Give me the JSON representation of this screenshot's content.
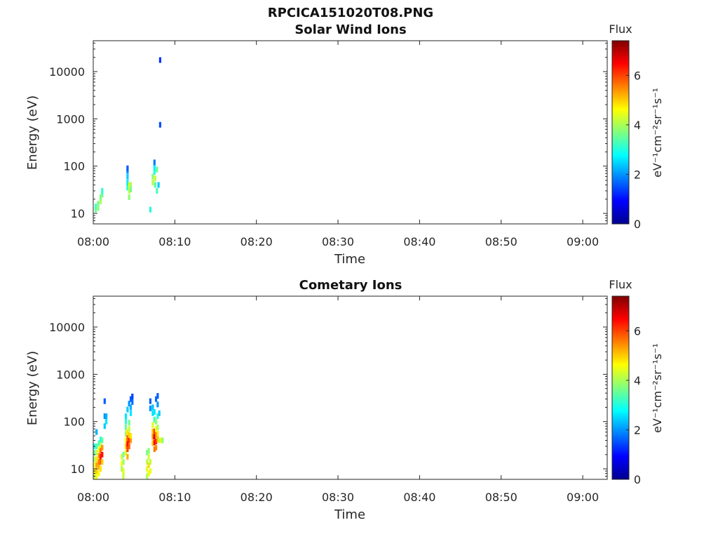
{
  "figure_title": "RPCICA151020T08.PNG",
  "chart_data": [
    {
      "type": "heatmap",
      "title": "Solar Wind Ions",
      "xlabel": "Time",
      "ylabel": "Energy (eV)",
      "y_scale": "log",
      "xlim": [
        "08:00",
        "09:03"
      ],
      "ylim": [
        6,
        45000
      ],
      "x_ticks": [
        "08:00",
        "08:10",
        "08:20",
        "08:30",
        "08:40",
        "08:50",
        "09:00"
      ],
      "y_ticks": [
        "10",
        "100",
        "1000",
        "10000"
      ],
      "colorbar": {
        "label": "Flux",
        "unit": "eV⁻¹cm⁻²sr⁻¹s⁻¹",
        "range": [
          0,
          7.4
        ],
        "ticks": [
          "0",
          "2",
          "4",
          "6"
        ],
        "colormap": "jet"
      },
      "cells": [
        [
          0.3,
          12,
          3.5
        ],
        [
          0.3,
          14,
          3.3
        ],
        [
          0.6,
          13,
          3.8
        ],
        [
          0.6,
          16,
          3.6
        ],
        [
          0.9,
          18,
          4.0
        ],
        [
          0.9,
          22,
          3.7
        ],
        [
          1.1,
          25,
          3.5
        ],
        [
          1.1,
          30,
          3.1
        ],
        [
          4.2,
          35,
          3.0
        ],
        [
          4.2,
          45,
          2.6
        ],
        [
          4.2,
          60,
          2.4
        ],
        [
          4.2,
          80,
          1.9
        ],
        [
          4.2,
          90,
          1.6
        ],
        [
          4.4,
          22,
          3.8
        ],
        [
          4.4,
          30,
          4.2
        ],
        [
          4.4,
          40,
          4.4
        ],
        [
          4.6,
          40,
          4.0
        ],
        [
          4.6,
          32,
          3.6
        ],
        [
          7.0,
          12,
          3.0
        ],
        [
          7.3,
          45,
          4.1
        ],
        [
          7.3,
          60,
          3.8
        ],
        [
          7.5,
          75,
          3.0
        ],
        [
          7.5,
          95,
          2.7
        ],
        [
          7.5,
          120,
          1.8
        ],
        [
          7.6,
          55,
          4.2
        ],
        [
          7.6,
          40,
          3.4
        ],
        [
          7.8,
          30,
          3.3
        ],
        [
          7.8,
          85,
          3.5
        ],
        [
          8.0,
          40,
          2.4
        ],
        [
          8.2,
          750,
          1.5
        ],
        [
          8.2,
          17500,
          1.3
        ]
      ]
    },
    {
      "type": "heatmap",
      "title": "Cometary Ions",
      "xlabel": "Time",
      "ylabel": "Energy (eV)",
      "y_scale": "log",
      "xlim": [
        "08:00",
        "09:03"
      ],
      "ylim": [
        6,
        45000
      ],
      "x_ticks": [
        "08:00",
        "08:10",
        "08:20",
        "08:30",
        "08:40",
        "08:50",
        "09:00"
      ],
      "y_ticks": [
        "10",
        "100",
        "1000",
        "10000"
      ],
      "colorbar": {
        "label": "Flux",
        "unit": "eV⁻¹cm⁻²sr⁻¹s⁻¹",
        "range": [
          0,
          7.4
        ],
        "ticks": [
          "0",
          "2",
          "4",
          "6"
        ],
        "colormap": "jet"
      },
      "cells": [
        [
          0.1,
          7,
          4.3
        ],
        [
          0.1,
          9,
          4.8
        ],
        [
          0.1,
          12,
          4.5
        ],
        [
          0.1,
          16,
          4.0
        ],
        [
          0.1,
          22,
          3.4
        ],
        [
          0.1,
          30,
          2.8
        ],
        [
          0.4,
          7,
          4.5
        ],
        [
          0.4,
          9,
          5.0
        ],
        [
          0.4,
          12,
          5.3
        ],
        [
          0.4,
          16,
          4.8
        ],
        [
          0.4,
          22,
          4.2
        ],
        [
          0.4,
          30,
          3.3
        ],
        [
          0.4,
          60,
          2.2
        ],
        [
          0.7,
          8,
          4.6
        ],
        [
          0.7,
          11,
          5.2
        ],
        [
          0.7,
          14,
          5.6
        ],
        [
          0.7,
          19,
          5.4
        ],
        [
          0.7,
          26,
          4.6
        ],
        [
          0.7,
          35,
          3.2
        ],
        [
          0.9,
          10,
          4.8
        ],
        [
          0.9,
          14,
          5.8
        ],
        [
          0.9,
          18,
          6.3
        ],
        [
          0.9,
          24,
          5.7
        ],
        [
          0.9,
          32,
          4.2
        ],
        [
          0.9,
          42,
          3.0
        ],
        [
          1.1,
          14,
          5.0
        ],
        [
          1.1,
          20,
          6.4
        ],
        [
          1.1,
          28,
          5.4
        ],
        [
          1.1,
          40,
          3.5
        ],
        [
          1.4,
          80,
          2.4
        ],
        [
          1.4,
          130,
          2.0
        ],
        [
          1.6,
          100,
          2.6
        ],
        [
          1.6,
          130,
          2.2
        ],
        [
          1.4,
          270,
          1.6
        ],
        [
          3.5,
          10,
          4.0
        ],
        [
          3.5,
          13,
          4.6
        ],
        [
          3.5,
          18,
          4.3
        ],
        [
          3.7,
          7,
          4.2
        ],
        [
          3.7,
          9,
          4.4
        ],
        [
          3.7,
          14,
          3.9
        ],
        [
          3.7,
          20,
          3.6
        ],
        [
          4.0,
          22,
          4.4
        ],
        [
          4.0,
          30,
          5.0
        ],
        [
          4.0,
          40,
          4.6
        ],
        [
          4.0,
          55,
          4.0
        ],
        [
          4.0,
          75,
          3.6
        ],
        [
          4.0,
          100,
          3.1
        ],
        [
          4.0,
          130,
          2.6
        ],
        [
          4.2,
          18,
          5.2
        ],
        [
          4.2,
          26,
          6.0
        ],
        [
          4.2,
          34,
          6.5
        ],
        [
          4.2,
          45,
          5.8
        ],
        [
          4.2,
          60,
          4.8
        ],
        [
          4.2,
          180,
          2.4
        ],
        [
          4.4,
          30,
          5.8
        ],
        [
          4.4,
          40,
          6.2
        ],
        [
          4.4,
          52,
          5.0
        ],
        [
          4.4,
          70,
          4.2
        ],
        [
          4.4,
          95,
          3.6
        ],
        [
          4.4,
          240,
          2.0
        ],
        [
          4.6,
          40,
          5.4
        ],
        [
          4.6,
          50,
          4.8
        ],
        [
          4.6,
          150,
          2.6
        ],
        [
          4.6,
          200,
          2.2
        ],
        [
          4.6,
          300,
          1.6
        ],
        [
          4.8,
          260,
          1.7
        ],
        [
          4.8,
          340,
          1.4
        ],
        [
          6.6,
          7,
          4.0
        ],
        [
          6.6,
          10,
          4.4
        ],
        [
          6.6,
          14,
          4.1
        ],
        [
          6.6,
          22,
          3.6
        ],
        [
          6.8,
          8,
          4.5
        ],
        [
          6.8,
          12,
          4.9
        ],
        [
          6.8,
          18,
          4.3
        ],
        [
          6.8,
          24,
          3.8
        ],
        [
          7.0,
          9,
          4.5
        ],
        [
          7.0,
          14,
          4.2
        ],
        [
          7.0,
          190,
          2.0
        ],
        [
          7.0,
          270,
          1.6
        ],
        [
          7.3,
          35,
          5.0
        ],
        [
          7.3,
          48,
          5.4
        ],
        [
          7.3,
          62,
          5.0
        ],
        [
          7.3,
          85,
          4.4
        ],
        [
          7.3,
          150,
          2.6
        ],
        [
          7.3,
          200,
          2.3
        ],
        [
          7.5,
          26,
          5.6
        ],
        [
          7.5,
          36,
          6.4
        ],
        [
          7.5,
          48,
          6.8
        ],
        [
          7.5,
          62,
          6.0
        ],
        [
          7.5,
          110,
          3.2
        ],
        [
          7.5,
          160,
          2.6
        ],
        [
          7.7,
          28,
          5.5
        ],
        [
          7.7,
          38,
          6.2
        ],
        [
          7.7,
          52,
          5.6
        ],
        [
          7.7,
          70,
          4.6
        ],
        [
          7.7,
          100,
          3.8
        ],
        [
          7.7,
          300,
          1.7
        ],
        [
          7.9,
          42,
          5.2
        ],
        [
          7.9,
          55,
          4.8
        ],
        [
          7.9,
          75,
          4.0
        ],
        [
          7.9,
          130,
          3.0
        ],
        [
          7.9,
          230,
          2.0
        ],
        [
          7.9,
          350,
          1.6
        ],
        [
          8.1,
          40,
          4.2
        ],
        [
          8.1,
          150,
          2.4
        ],
        [
          8.3,
          40,
          4.5
        ],
        [
          8.5,
          40,
          3.8
        ]
      ]
    }
  ]
}
